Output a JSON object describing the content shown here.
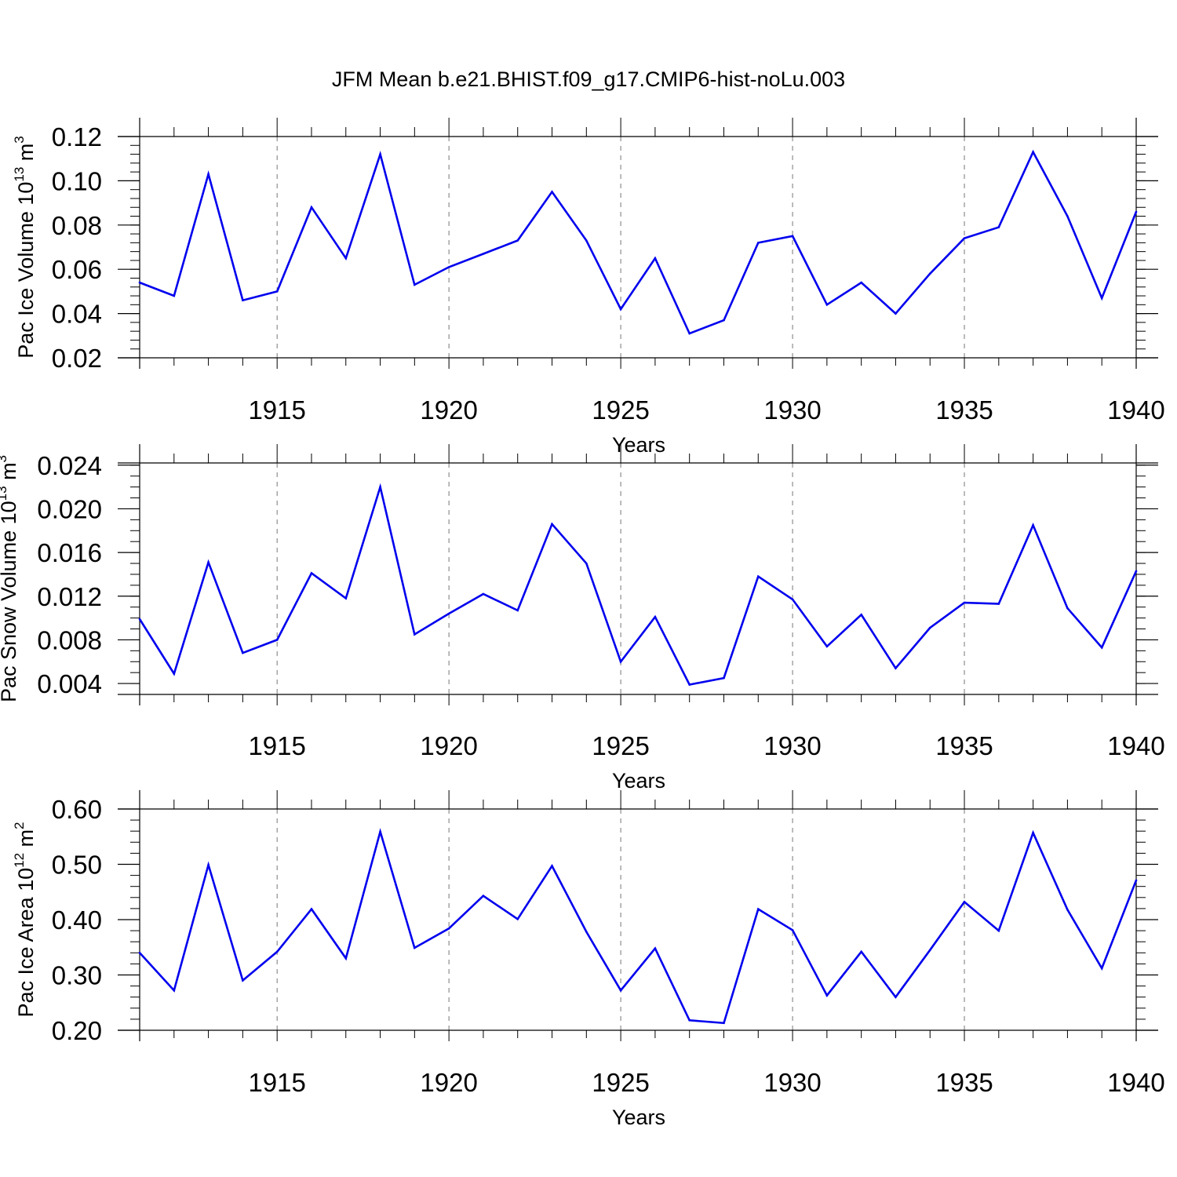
{
  "figure": {
    "title": "JFM Mean b.e21.BHIST.f09_g17.CMIP6-hist-noLu.003"
  },
  "colors": {
    "line": "#0000ee",
    "axis": "#000000",
    "grid": "#777777",
    "background": "#ffffff"
  },
  "chart_data": [
    {
      "type": "line",
      "panel": "ice-volume",
      "title": "JFM Mean b.e21.BHIST.f09_g17.CMIP6-hist-noLu.003",
      "ylabel": {
        "text": "Pac Ice Volume 10",
        "sup": "13",
        "unit": " m",
        "unit_sup": "3"
      },
      "xlabel": "Years",
      "xlim": [
        1911,
        1940
      ],
      "ylim": [
        0.02,
        0.12
      ],
      "grid": "vertical dashed at major x ticks",
      "x_major_ticks": [
        1915,
        1920,
        1925,
        1930,
        1935,
        1940
      ],
      "x_tick_labels": [
        "1915",
        "1920",
        "1925",
        "1930",
        "1935",
        "1940"
      ],
      "y_major_ticks": [
        0.02,
        0.04,
        0.06,
        0.08,
        0.1,
        0.12
      ],
      "y_tick_labels": [
        "0.02",
        "0.04",
        "0.06",
        "0.08",
        "0.10",
        "0.12"
      ],
      "y_minor_step": 0.004,
      "x": [
        1911,
        1912,
        1913,
        1914,
        1915,
        1916,
        1917,
        1918,
        1919,
        1920,
        1921,
        1922,
        1923,
        1924,
        1925,
        1926,
        1927,
        1928,
        1929,
        1930,
        1931,
        1932,
        1933,
        1934,
        1935,
        1936,
        1937,
        1938,
        1939,
        1940
      ],
      "series": [
        {
          "name": "Pac Ice Volume",
          "values": [
            0.054,
            0.048,
            0.103,
            0.046,
            0.05,
            0.088,
            0.065,
            0.112,
            0.053,
            0.061,
            0.067,
            0.073,
            0.095,
            0.073,
            0.042,
            0.065,
            0.031,
            0.037,
            0.072,
            0.075,
            0.044,
            0.054,
            0.04,
            0.058,
            0.074,
            0.079,
            0.113,
            0.084,
            0.047,
            0.086
          ]
        }
      ]
    },
    {
      "type": "line",
      "panel": "snow-volume",
      "ylabel": {
        "text": "Pac Snow Volume 10",
        "sup": "13",
        "unit": " m",
        "unit_sup": "3"
      },
      "xlabel": "Years",
      "xlim": [
        1911,
        1940
      ],
      "ylim": [
        0.003,
        0.0242
      ],
      "grid": "vertical dashed at major x ticks",
      "x_major_ticks": [
        1915,
        1920,
        1925,
        1930,
        1935,
        1940
      ],
      "x_tick_labels": [
        "1915",
        "1920",
        "1925",
        "1930",
        "1935",
        "1940"
      ],
      "y_major_ticks": [
        0.004,
        0.008,
        0.012,
        0.016,
        0.02,
        0.024
      ],
      "y_tick_labels": [
        "0.004",
        "0.008",
        "0.012",
        "0.016",
        "0.020",
        "0.024"
      ],
      "y_minor_step": 0.001,
      "x": [
        1911,
        1912,
        1913,
        1914,
        1915,
        1916,
        1917,
        1918,
        1919,
        1920,
        1921,
        1922,
        1923,
        1924,
        1925,
        1926,
        1927,
        1928,
        1929,
        1930,
        1931,
        1932,
        1933,
        1934,
        1935,
        1936,
        1937,
        1938,
        1939,
        1940
      ],
      "series": [
        {
          "name": "Pac Snow Volume",
          "values": [
            0.0099,
            0.0049,
            0.0151,
            0.0068,
            0.008,
            0.0141,
            0.0118,
            0.022,
            0.0085,
            0.0104,
            0.0122,
            0.0107,
            0.0186,
            0.015,
            0.006,
            0.0101,
            0.0039,
            0.0045,
            0.0138,
            0.0117,
            0.0074,
            0.0103,
            0.0054,
            0.0091,
            0.0114,
            0.0113,
            0.0185,
            0.0109,
            0.0073,
            0.0143
          ]
        }
      ]
    },
    {
      "type": "line",
      "panel": "ice-area",
      "ylabel": {
        "text": "Pac Ice Area 10",
        "sup": "12",
        "unit": " m",
        "unit_sup": "2"
      },
      "xlabel": "Years",
      "xlim": [
        1911,
        1940
      ],
      "ylim": [
        0.2,
        0.6
      ],
      "grid": "vertical dashed at major x ticks",
      "x_major_ticks": [
        1915,
        1920,
        1925,
        1930,
        1935,
        1940
      ],
      "x_tick_labels": [
        "1915",
        "1920",
        "1925",
        "1930",
        "1935",
        "1940"
      ],
      "y_major_ticks": [
        0.2,
        0.3,
        0.4,
        0.5,
        0.6
      ],
      "y_tick_labels": [
        "0.20",
        "0.30",
        "0.40",
        "0.50",
        "0.60"
      ],
      "y_minor_step": 0.02,
      "x": [
        1911,
        1912,
        1913,
        1914,
        1915,
        1916,
        1917,
        1918,
        1919,
        1920,
        1921,
        1922,
        1923,
        1924,
        1925,
        1926,
        1927,
        1928,
        1929,
        1930,
        1931,
        1932,
        1933,
        1934,
        1935,
        1936,
        1937,
        1938,
        1939,
        1940
      ],
      "series": [
        {
          "name": "Pac Ice Area",
          "values": [
            0.34,
            0.272,
            0.499,
            0.29,
            0.342,
            0.419,
            0.33,
            0.559,
            0.349,
            0.384,
            0.443,
            0.401,
            0.497,
            0.378,
            0.272,
            0.348,
            0.218,
            0.213,
            0.419,
            0.381,
            0.263,
            0.342,
            0.26,
            0.345,
            0.432,
            0.38,
            0.557,
            0.418,
            0.312,
            0.471
          ]
        }
      ]
    }
  ]
}
